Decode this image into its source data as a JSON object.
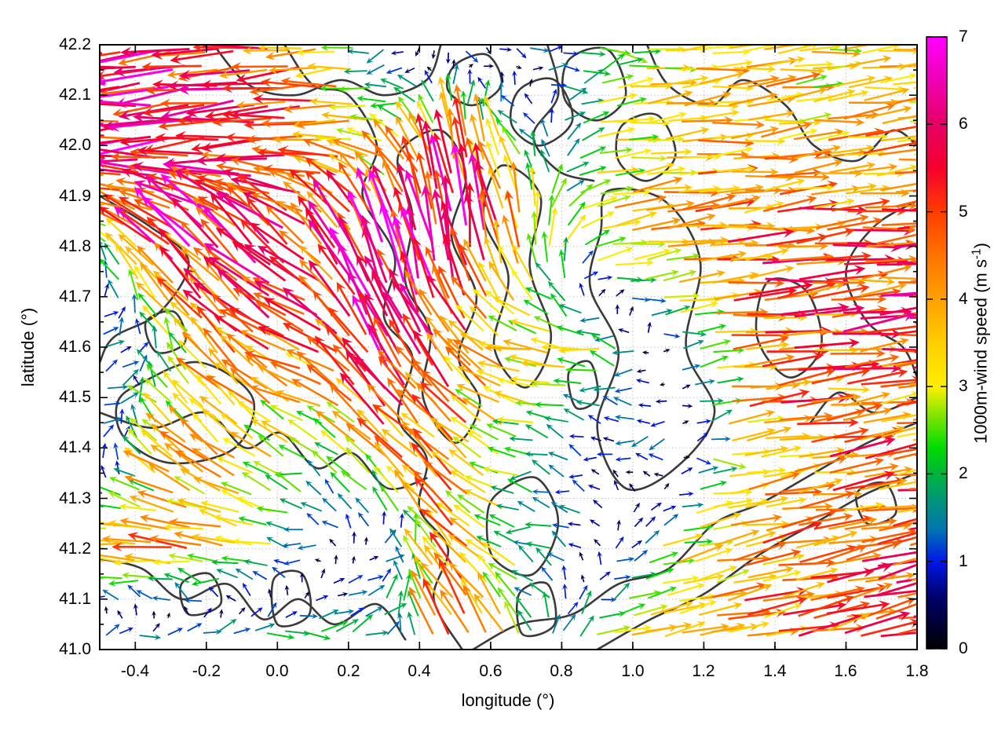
{
  "chart_data": {
    "type": "vector_field_map",
    "title": "",
    "xlabel": "longitude (°)",
    "ylabel": "latitude (°)",
    "xlim": [
      -0.5,
      1.8
    ],
    "ylim": [
      41.0,
      42.2
    ],
    "x_ticks": {
      "values": [
        -0.4,
        -0.2,
        0.0,
        0.2,
        0.4,
        0.6,
        0.8,
        1.0,
        1.2,
        1.4,
        1.6,
        1.8
      ],
      "labels": [
        "-0.4",
        "-0.2",
        "0.0",
        "0.2",
        "0.4",
        "0.6",
        "0.8",
        "1.0",
        "1.2",
        "1.4",
        "1.6",
        "1.8"
      ]
    },
    "y_ticks": {
      "values": [
        41.0,
        41.1,
        41.2,
        41.3,
        41.4,
        41.5,
        41.6,
        41.7,
        41.8,
        41.9,
        42.0,
        42.1,
        42.2
      ],
      "labels": [
        "41.0",
        "41.1",
        "41.2",
        "41.3",
        "41.4",
        "41.5",
        "41.6",
        "41.7",
        "41.8",
        "41.9",
        "42.0",
        "42.1",
        "42.2"
      ]
    },
    "grid": "dotted-gray-at-major-ticks",
    "colorbar": {
      "label": "1000m-wind speed (m s⁻¹)",
      "label_parts": {
        "pre": "1000m-wind speed (m s",
        "sup": "-1",
        "post": ")"
      },
      "min": 0,
      "max": 7,
      "ticks": {
        "values": [
          0,
          1,
          2,
          3,
          4,
          5,
          6,
          7
        ],
        "labels": [
          "0",
          "1",
          "2",
          "3",
          "4",
          "5",
          "6",
          "7"
        ]
      },
      "stops": [
        [
          0,
          "#000000"
        ],
        [
          0.6,
          "#00006e"
        ],
        [
          1,
          "#0018e8"
        ],
        [
          1.35,
          "#0072b4"
        ],
        [
          1.7,
          "#009678"
        ],
        [
          2,
          "#00b43c"
        ],
        [
          2.3,
          "#00dc00"
        ],
        [
          2.7,
          "#8ce600"
        ],
        [
          3,
          "#ffef00"
        ],
        [
          3.5,
          "#ffcd00"
        ],
        [
          4,
          "#ffa000"
        ],
        [
          4.5,
          "#ff7300"
        ],
        [
          5,
          "#ff3c00"
        ],
        [
          5.5,
          "#f5002d"
        ],
        [
          6,
          "#e80064"
        ],
        [
          6.5,
          "#ef00b4"
        ],
        [
          7,
          "#ff00ff"
        ]
      ]
    },
    "contour_color": "#3a3a3a",
    "vector_grid": {
      "description": "1000m wind vectors (u eastward, v northward, m/s) sampled on coarse lon/lat grid; arrows colored by speed",
      "lons": [
        -0.5,
        -0.3,
        -0.1,
        0.1,
        0.3,
        0.5,
        0.7,
        0.9,
        1.1,
        1.3,
        1.5,
        1.7
      ],
      "lats": [
        41.0,
        41.2,
        41.4,
        41.6,
        41.8,
        42.0,
        42.2
      ],
      "u": [
        [
          1.5,
          2.0,
          2.2,
          2.5,
          1.5,
          -2.5,
          -1.0,
          3.0,
          3.8,
          4.2,
          4.5,
          5.0
        ],
        [
          -3.5,
          -4.2,
          -3.2,
          -1.0,
          0.8,
          -2.8,
          -2.0,
          -0.6,
          2.8,
          4.0,
          4.3,
          4.6
        ],
        [
          1.3,
          -2.5,
          -3.0,
          -2.0,
          -3.0,
          -3.2,
          -2.3,
          -0.7,
          -1.3,
          3.6,
          4.2,
          4.2
        ],
        [
          1.8,
          -1.0,
          -3.3,
          -4.5,
          -2.5,
          -2.8,
          -3.3,
          -2.8,
          0.6,
          4.4,
          4.6,
          4.8
        ],
        [
          -1.5,
          -4.0,
          -4.2,
          -3.8,
          -1.5,
          -1.0,
          -0.5,
          3.0,
          4.2,
          4.6,
          4.8,
          5.0
        ],
        [
          -5.5,
          -5.8,
          -5.2,
          -4.8,
          -3.0,
          -0.8,
          -1.5,
          3.0,
          3.6,
          3.8,
          3.5,
          3.8
        ],
        [
          -6.0,
          -5.5,
          -5.0,
          -4.0,
          -1.2,
          0.4,
          1.0,
          1.8,
          3.0,
          3.4,
          3.0,
          3.2
        ]
      ],
      "v": [
        [
          0.5,
          0.4,
          0.5,
          0.4,
          1.2,
          4.5,
          2.5,
          0.8,
          0.9,
          1.0,
          1.0,
          1.1
        ],
        [
          0.3,
          0.3,
          0.5,
          0.2,
          0.4,
          3.2,
          0.4,
          0.5,
          0.6,
          0.8,
          0.8,
          0.9
        ],
        [
          0.8,
          2.2,
          2.4,
          1.0,
          3.0,
          2.8,
          0.4,
          0.2,
          -0.2,
          0.5,
          0.6,
          0.6
        ],
        [
          0.2,
          1.8,
          3.0,
          1.5,
          5.0,
          3.8,
          0.6,
          0.3,
          0.2,
          0.4,
          0.5,
          0.5
        ],
        [
          1.5,
          3.8,
          4.0,
          3.5,
          6.0,
          6.5,
          4.0,
          0.6,
          0.5,
          0.4,
          0.5,
          0.5
        ],
        [
          -0.6,
          -0.5,
          -0.4,
          -0.3,
          1.0,
          4.5,
          1.5,
          0.4,
          0.4,
          0.4,
          0.4,
          0.4
        ],
        [
          -0.4,
          -0.4,
          -0.4,
          -0.3,
          -0.4,
          -1.0,
          -0.4,
          0.2,
          0.3,
          0.3,
          0.3,
          0.3
        ]
      ]
    },
    "contours": [
      {
        "closed": false,
        "pts": [
          [
            0.02,
            42.2
          ],
          [
            0.1,
            42.12
          ],
          [
            0.2,
            42.1
          ],
          [
            0.28,
            42.0
          ],
          [
            0.24,
            41.9
          ],
          [
            0.33,
            41.78
          ],
          [
            0.3,
            41.66
          ],
          [
            0.38,
            41.58
          ],
          [
            0.34,
            41.46
          ],
          [
            0.42,
            41.38
          ],
          [
            0.4,
            41.28
          ],
          [
            0.48,
            41.2
          ],
          [
            0.44,
            41.1
          ],
          [
            0.52,
            41.0
          ]
        ]
      },
      {
        "closed": false,
        "pts": [
          [
            -0.5,
            41.9
          ],
          [
            -0.36,
            41.84
          ],
          [
            -0.25,
            41.77
          ],
          [
            -0.33,
            41.67
          ],
          [
            -0.46,
            41.62
          ],
          [
            -0.5,
            41.57
          ]
        ]
      },
      {
        "closed": true,
        "pts": [
          [
            -0.38,
            41.53
          ],
          [
            -0.22,
            41.57
          ],
          [
            -0.07,
            41.5
          ],
          [
            -0.12,
            41.4
          ],
          [
            -0.3,
            41.37
          ],
          [
            -0.43,
            41.42
          ],
          [
            -0.45,
            41.49
          ]
        ]
      },
      {
        "closed": true,
        "pts": [
          [
            -0.37,
            41.65
          ],
          [
            -0.29,
            41.67
          ],
          [
            -0.26,
            41.61
          ],
          [
            -0.34,
            41.59
          ]
        ]
      },
      {
        "closed": true,
        "pts": [
          [
            0.34,
            41.98
          ],
          [
            0.46,
            42.03
          ],
          [
            0.53,
            41.94
          ],
          [
            0.49,
            41.82
          ],
          [
            0.56,
            41.7
          ],
          [
            0.51,
            41.58
          ],
          [
            0.57,
            41.49
          ],
          [
            0.5,
            41.41
          ],
          [
            0.41,
            41.5
          ],
          [
            0.43,
            41.63
          ],
          [
            0.36,
            41.73
          ],
          [
            0.38,
            41.86
          ]
        ]
      },
      {
        "closed": true,
        "pts": [
          [
            0.63,
            41.96
          ],
          [
            0.74,
            41.9
          ],
          [
            0.71,
            41.76
          ],
          [
            0.77,
            41.62
          ],
          [
            0.7,
            41.52
          ],
          [
            0.61,
            41.6
          ],
          [
            0.65,
            41.74
          ],
          [
            0.58,
            41.86
          ]
        ]
      },
      {
        "closed": true,
        "pts": [
          [
            0.93,
            41.91
          ],
          [
            1.09,
            41.89
          ],
          [
            1.19,
            41.77
          ],
          [
            1.15,
            41.6
          ],
          [
            1.23,
            41.47
          ],
          [
            1.12,
            41.36
          ],
          [
            0.98,
            41.32
          ],
          [
            0.9,
            41.44
          ],
          [
            0.96,
            41.59
          ],
          [
            0.88,
            41.72
          ],
          [
            0.91,
            41.83
          ]
        ]
      },
      {
        "closed": true,
        "pts": [
          [
            0.5,
            42.16
          ],
          [
            0.59,
            42.18
          ],
          [
            0.63,
            42.12
          ],
          [
            0.55,
            42.08
          ],
          [
            0.48,
            42.11
          ]
        ]
      },
      {
        "closed": true,
        "pts": [
          [
            0.68,
            42.11
          ],
          [
            0.78,
            42.13
          ],
          [
            0.83,
            42.05
          ],
          [
            0.74,
            42.0
          ],
          [
            0.66,
            42.04
          ]
        ]
      },
      {
        "closed": false,
        "pts": [
          [
            1.04,
            42.2
          ],
          [
            1.1,
            42.12
          ],
          [
            1.22,
            42.08
          ],
          [
            1.31,
            42.13
          ],
          [
            1.43,
            42.08
          ],
          [
            1.51,
            42.0
          ],
          [
            1.63,
            41.97
          ],
          [
            1.73,
            42.03
          ],
          [
            1.8,
            42.0
          ]
        ]
      },
      {
        "closed": true,
        "pts": [
          [
            1.38,
            41.73
          ],
          [
            1.49,
            41.71
          ],
          [
            1.53,
            41.6
          ],
          [
            1.44,
            41.54
          ],
          [
            1.35,
            41.62
          ]
        ]
      },
      {
        "closed": false,
        "pts": [
          [
            1.8,
            41.89
          ],
          [
            1.68,
            41.84
          ],
          [
            1.6,
            41.75
          ],
          [
            1.66,
            41.65
          ],
          [
            1.76,
            41.6
          ],
          [
            1.8,
            41.54
          ]
        ]
      },
      {
        "closed": false,
        "pts": [
          [
            -0.5,
            41.47
          ],
          [
            -0.35,
            41.44
          ],
          [
            -0.2,
            41.47
          ],
          [
            -0.09,
            41.4
          ],
          [
            0.01,
            41.43
          ],
          [
            0.11,
            41.36
          ],
          [
            0.21,
            41.39
          ],
          [
            0.31,
            41.32
          ],
          [
            0.42,
            41.34
          ]
        ]
      },
      {
        "closed": false,
        "pts": [
          [
            -0.5,
            41.18
          ],
          [
            -0.38,
            41.16
          ],
          [
            -0.27,
            41.1
          ],
          [
            -0.14,
            41.13
          ],
          [
            -0.04,
            41.06
          ],
          [
            0.06,
            41.1
          ],
          [
            0.16,
            41.05
          ],
          [
            0.28,
            41.09
          ],
          [
            0.36,
            41.02
          ]
        ]
      },
      {
        "closed": true,
        "pts": [
          [
            -0.27,
            41.13
          ],
          [
            -0.19,
            41.15
          ],
          [
            -0.16,
            41.09
          ],
          [
            -0.25,
            41.07
          ]
        ]
      },
      {
        "closed": true,
        "pts": [
          [
            -0.01,
            41.14
          ],
          [
            0.07,
            41.15
          ],
          [
            0.09,
            41.07
          ],
          [
            0.0,
            41.05
          ]
        ]
      },
      {
        "closed": true,
        "pts": [
          [
            0.62,
            41.31
          ],
          [
            0.73,
            41.34
          ],
          [
            0.79,
            41.25
          ],
          [
            0.72,
            41.15
          ],
          [
            0.61,
            41.18
          ],
          [
            0.59,
            41.26
          ]
        ]
      },
      {
        "closed": true,
        "pts": [
          [
            0.68,
            41.11
          ],
          [
            0.76,
            41.13
          ],
          [
            0.78,
            41.05
          ],
          [
            0.69,
            41.03
          ]
        ]
      },
      {
        "closed": false,
        "pts": [
          [
            0.55,
            41.0
          ],
          [
            0.68,
            41.05
          ],
          [
            0.83,
            41.07
          ],
          [
            0.96,
            41.13
          ],
          [
            1.1,
            41.16
          ],
          [
            1.23,
            41.25
          ],
          [
            1.36,
            41.29
          ],
          [
            1.51,
            41.35
          ],
          [
            1.66,
            41.41
          ],
          [
            1.8,
            41.45
          ]
        ]
      },
      {
        "closed": false,
        "pts": [
          [
            0.9,
            41.0
          ],
          [
            1.05,
            41.06
          ],
          [
            1.2,
            41.11
          ],
          [
            1.36,
            41.19
          ],
          [
            1.51,
            41.25
          ],
          [
            1.66,
            41.31
          ],
          [
            1.8,
            41.35
          ]
        ]
      },
      {
        "closed": true,
        "pts": [
          [
            1.63,
            41.31
          ],
          [
            1.71,
            41.33
          ],
          [
            1.74,
            41.27
          ],
          [
            1.66,
            41.25
          ]
        ]
      },
      {
        "closed": false,
        "pts": [
          [
            -0.18,
            42.2
          ],
          [
            -0.08,
            42.12
          ],
          [
            0.05,
            42.1
          ],
          [
            0.18,
            42.13
          ],
          [
            0.3,
            42.1
          ],
          [
            0.42,
            42.13
          ],
          [
            0.46,
            42.2
          ]
        ]
      },
      {
        "closed": true,
        "pts": [
          [
            0.82,
            42.17
          ],
          [
            0.93,
            42.19
          ],
          [
            0.98,
            42.1
          ],
          [
            0.9,
            42.05
          ],
          [
            0.81,
            42.09
          ]
        ]
      },
      {
        "closed": false,
        "pts": [
          [
            0.76,
            42.2
          ],
          [
            0.79,
            42.1
          ],
          [
            0.72,
            42.02
          ],
          [
            0.79,
            41.95
          ],
          [
            0.89,
            41.93
          ]
        ]
      },
      {
        "closed": false,
        "pts": [
          [
            1.8,
            41.5
          ],
          [
            1.68,
            41.47
          ],
          [
            1.58,
            41.51
          ],
          [
            1.5,
            41.45
          ]
        ]
      },
      {
        "closed": true,
        "pts": [
          [
            0.97,
            42.04
          ],
          [
            1.07,
            42.06
          ],
          [
            1.12,
            41.98
          ],
          [
            1.04,
            41.93
          ],
          [
            0.96,
            41.97
          ]
        ]
      },
      {
        "closed": true,
        "pts": [
          [
            0.82,
            41.55
          ],
          [
            0.88,
            41.57
          ],
          [
            0.9,
            41.5
          ],
          [
            0.84,
            41.48
          ]
        ]
      }
    ]
  }
}
